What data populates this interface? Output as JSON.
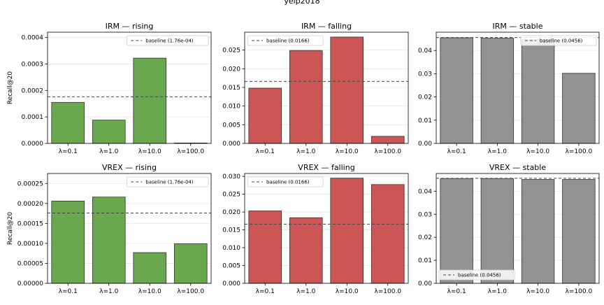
{
  "figure": {
    "title": "yelp2018"
  },
  "chart_data": [
    {
      "type": "bar",
      "title": "IRM — rising",
      "ylabel": "Recall@20",
      "categories": [
        "λ=0.1",
        "λ=1.0",
        "λ=10.0",
        "λ=100.0"
      ],
      "values": [
        0.000155,
        8.8e-05,
        0.000322,
        1e-06
      ],
      "ylim": [
        0,
        0.00042
      ],
      "yticks": [
        0,
        0.0001,
        0.0002,
        0.0003,
        0.0004
      ],
      "ytick_labels": [
        "0.0000",
        "0.0001",
        "0.0002",
        "0.0003",
        "0.0004"
      ],
      "baseline": {
        "value": 0.000176,
        "label": "baseline (1.76e-04)"
      },
      "bar_color": "#6aa84f",
      "legend_position": "upper right",
      "grid": "horizontal"
    },
    {
      "type": "bar",
      "title": "IRM — falling",
      "ylabel": "",
      "categories": [
        "λ=0.1",
        "λ=1.0",
        "λ=10.0",
        "λ=100.0"
      ],
      "values": [
        0.0148,
        0.0249,
        0.0285,
        0.0019
      ],
      "ylim": [
        0,
        0.0298
      ],
      "yticks": [
        0,
        0.005,
        0.01,
        0.015,
        0.02,
        0.025
      ],
      "ytick_labels": [
        "0.000",
        "0.005",
        "0.010",
        "0.015",
        "0.020",
        "0.025"
      ],
      "baseline": {
        "value": 0.0166,
        "label": "baseline (0.0166)"
      },
      "bar_color": "#cc5555",
      "legend_position": "upper left",
      "grid": "horizontal"
    },
    {
      "type": "bar",
      "title": "IRM — stable",
      "ylabel": "",
      "categories": [
        "λ=0.1",
        "λ=1.0",
        "λ=10.0",
        "λ=100.0"
      ],
      "values": [
        0.0455,
        0.0453,
        0.0447,
        0.0302
      ],
      "ylim": [
        0,
        0.0479
      ],
      "yticks": [
        0,
        0.01,
        0.02,
        0.03,
        0.04
      ],
      "ytick_labels": [
        "0.00",
        "0.01",
        "0.02",
        "0.03",
        "0.04"
      ],
      "baseline": {
        "value": 0.0456,
        "label": "baseline (0.0456)"
      },
      "bar_color": "#929292",
      "legend_position": "upper right",
      "grid": "horizontal"
    },
    {
      "type": "bar",
      "title": "VREX — rising",
      "ylabel": "Recall@20",
      "categories": [
        "λ=0.1",
        "λ=1.0",
        "λ=10.0",
        "λ=100.0"
      ],
      "values": [
        0.000206,
        0.000216,
        7.7e-05,
        9.9e-05
      ],
      "ylim": [
        0,
        0.000275
      ],
      "yticks": [
        0,
        5e-05,
        0.0001,
        0.00015,
        0.0002,
        0.00025
      ],
      "ytick_labels": [
        "0.00000",
        "0.00005",
        "0.00010",
        "0.00015",
        "0.00020",
        "0.00025"
      ],
      "baseline": {
        "value": 0.000176,
        "label": "baseline (1.76e-04)"
      },
      "bar_color": "#6aa84f",
      "legend_position": "upper right",
      "grid": "horizontal"
    },
    {
      "type": "bar",
      "title": "VREX — falling",
      "ylabel": "",
      "categories": [
        "λ=0.1",
        "λ=1.0",
        "λ=10.0",
        "λ=100.0"
      ],
      "values": [
        0.0203,
        0.0184,
        0.0295,
        0.0277
      ],
      "ylim": [
        0,
        0.0308
      ],
      "yticks": [
        0,
        0.005,
        0.01,
        0.015,
        0.02,
        0.025,
        0.03
      ],
      "ytick_labels": [
        "0.000",
        "0.005",
        "0.010",
        "0.015",
        "0.020",
        "0.025",
        "0.030"
      ],
      "baseline": {
        "value": 0.0166,
        "label": "baseline (0.0166)"
      },
      "bar_color": "#cc5555",
      "legend_position": "upper left",
      "grid": "horizontal"
    },
    {
      "type": "bar",
      "title": "VREX — stable",
      "ylabel": "",
      "categories": [
        "λ=0.1",
        "λ=1.0",
        "λ=10.0",
        "λ=100.0"
      ],
      "values": [
        0.0455,
        0.0455,
        0.0451,
        0.0451
      ],
      "ylim": [
        0,
        0.0477
      ],
      "yticks": [
        0,
        0.01,
        0.02,
        0.03,
        0.04
      ],
      "ytick_labels": [
        "0.00",
        "0.01",
        "0.02",
        "0.03",
        "0.04"
      ],
      "baseline": {
        "value": 0.0456,
        "label": "baseline (0.0456)"
      },
      "bar_color": "#929292",
      "legend_position": "lower left",
      "grid": "horizontal"
    }
  ]
}
